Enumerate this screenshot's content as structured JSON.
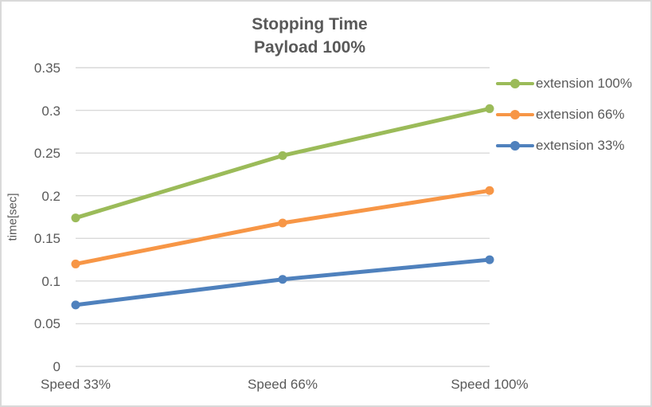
{
  "chart_data": {
    "type": "line",
    "title_lines": [
      "Stopping Time",
      "Payload 100%"
    ],
    "title": "Stopping Time Payload 100%",
    "xlabel": "",
    "ylabel": "time[sec]",
    "categories": [
      "Speed 33%",
      "Speed 66%",
      "Speed 100%"
    ],
    "series": [
      {
        "name": "extension 100%",
        "color": "#9BBB59",
        "values": [
          0.174,
          0.247,
          0.302
        ]
      },
      {
        "name": "extension 66%",
        "color": "#F79646",
        "values": [
          0.12,
          0.168,
          0.206
        ]
      },
      {
        "name": "extension 33%",
        "color": "#4F81BD",
        "values": [
          0.072,
          0.102,
          0.125
        ]
      }
    ],
    "ylim": [
      0,
      0.35
    ],
    "ytick_step": 0.05,
    "ytick_labels": [
      "0",
      "0.05",
      "0.1",
      "0.15",
      "0.2",
      "0.25",
      "0.3",
      "0.35"
    ],
    "grid": true,
    "legend_position": "right"
  },
  "colors": {
    "text": "#595959",
    "gridline": "#d9d9d9",
    "chart_border": "#d9d9d9",
    "background": "#ffffff"
  }
}
